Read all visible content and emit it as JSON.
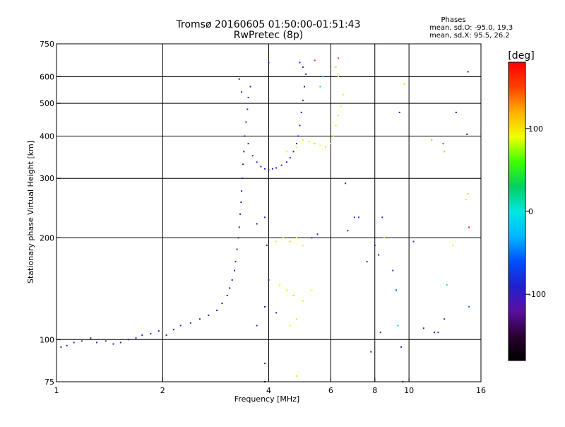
{
  "colors": {
    "background": "#ffffff",
    "axis": "#000000",
    "grid": "#000000",
    "colorbar_stops": [
      "#000000",
      "#2b0033",
      "#5a0fa0",
      "#2020d0",
      "#0050ff",
      "#00b8ff",
      "#00e8e0",
      "#00d060",
      "#40ff00",
      "#f0ff00",
      "#ffb000",
      "#ff4000",
      "#ff0000"
    ]
  },
  "chart_data": {
    "type": "scatter",
    "title": "Tromsø 20160605 01:50:00-01:51:43",
    "subtitle": "RwPretec (8p)",
    "xlabel": "Frequency [MHz]",
    "ylabel": "Stationary phase Virtual Height [km]",
    "x_scale": "log",
    "y_scale": "log",
    "xlim": [
      1,
      16
    ],
    "ylim": [
      75,
      750
    ],
    "x_ticks": [
      1,
      2,
      4,
      6,
      8,
      10,
      16
    ],
    "y_ticks": [
      75,
      100,
      200,
      300,
      400,
      500,
      600,
      750
    ],
    "x_gridlines": [
      2,
      4,
      6,
      8,
      10
    ],
    "y_gridlines": [
      100,
      200,
      300,
      400,
      500,
      600
    ],
    "grid": true,
    "legend_block": {
      "title": "Phases",
      "line1": "mean, sd,O: -95.0, 19.3",
      "line2": "mean, sd,X:  95.5, 26.2"
    },
    "colorbar": {
      "label": "[deg]",
      "range": [
        -180,
        180
      ],
      "ticks": [
        100,
        0,
        -100
      ]
    },
    "series": [
      {
        "values": [
          [
            1.03,
            95,
            -100
          ],
          [
            1.07,
            96,
            -95
          ],
          [
            1.12,
            98,
            -105
          ],
          [
            1.18,
            99,
            -90
          ],
          [
            1.25,
            101,
            -110
          ],
          [
            1.3,
            98,
            -95
          ],
          [
            1.38,
            99,
            -100
          ],
          [
            1.45,
            97,
            -85
          ],
          [
            1.52,
            98,
            -100
          ],
          [
            1.6,
            100,
            -110
          ],
          [
            1.68,
            101,
            -95
          ],
          [
            1.75,
            103,
            -100
          ],
          [
            1.85,
            104,
            -90
          ],
          [
            1.95,
            106,
            -100
          ],
          [
            2.05,
            103,
            -95
          ],
          [
            2.15,
            107,
            -100
          ],
          [
            2.25,
            110,
            -85
          ],
          [
            2.4,
            112,
            -105
          ],
          [
            2.55,
            115,
            -95
          ],
          [
            2.7,
            118,
            -100
          ],
          [
            2.85,
            122,
            -110
          ],
          [
            2.95,
            128,
            -90
          ],
          [
            3.05,
            135,
            -100
          ],
          [
            3.1,
            142,
            -95
          ],
          [
            3.15,
            150,
            -105
          ],
          [
            3.2,
            160,
            -100
          ],
          [
            3.22,
            170,
            -90
          ],
          [
            3.25,
            185,
            -110
          ],
          [
            3.28,
            200,
            -100
          ],
          [
            3.3,
            215,
            -95
          ],
          [
            3.32,
            235,
            -105
          ],
          [
            3.34,
            255,
            -100
          ],
          [
            3.35,
            275,
            -90
          ],
          [
            3.37,
            300,
            -100
          ],
          [
            3.38,
            330,
            -110
          ],
          [
            3.4,
            360,
            -95
          ],
          [
            3.42,
            400,
            -100
          ],
          [
            3.45,
            440,
            -105
          ],
          [
            3.48,
            480,
            -90
          ],
          [
            3.5,
            520,
            -100
          ],
          [
            3.55,
            560,
            -110
          ],
          [
            3.35,
            540,
            -100
          ],
          [
            3.3,
            590,
            -95
          ],
          [
            3.5,
            380,
            -90
          ],
          [
            3.6,
            350,
            -100
          ],
          [
            3.7,
            335,
            -105
          ],
          [
            3.8,
            325,
            -95
          ],
          [
            3.9,
            320,
            -100
          ],
          [
            4.0,
            318,
            -90
          ],
          [
            4.1,
            320,
            -100
          ],
          [
            4.2,
            322,
            -110
          ],
          [
            4.35,
            328,
            -95
          ],
          [
            4.5,
            335,
            -100
          ],
          [
            4.6,
            345,
            -90
          ],
          [
            4.7,
            360,
            -100
          ],
          [
            4.8,
            380,
            -105
          ],
          [
            4.85,
            400,
            -95
          ],
          [
            4.9,
            430,
            -100
          ],
          [
            4.95,
            470,
            -90
          ],
          [
            5.0,
            510,
            -100
          ],
          [
            5.05,
            560,
            -110
          ],
          [
            5.1,
            610,
            -95
          ],
          [
            5.0,
            640,
            -100
          ],
          [
            4.9,
            660,
            -90
          ],
          [
            4.0,
            660,
            -100
          ],
          [
            5.0,
            390,
            95
          ],
          [
            5.2,
            385,
            100
          ],
          [
            5.4,
            380,
            110
          ],
          [
            5.6,
            375,
            90
          ],
          [
            5.8,
            372,
            100
          ],
          [
            6.0,
            380,
            95
          ],
          [
            6.1,
            400,
            110
          ],
          [
            6.2,
            430,
            100
          ],
          [
            6.3,
            460,
            105
          ],
          [
            6.4,
            490,
            95
          ],
          [
            6.5,
            530,
            100
          ],
          [
            6.3,
            600,
            80
          ],
          [
            6.2,
            640,
            110
          ],
          [
            6.3,
            680,
            150
          ],
          [
            5.7,
            600,
            -20
          ],
          [
            5.6,
            560,
            10
          ],
          [
            4.8,
            370,
            90
          ],
          [
            4.5,
            360,
            100
          ],
          [
            3.95,
            190,
            -100
          ],
          [
            4.2,
            195,
            95
          ],
          [
            4.4,
            200,
            100
          ],
          [
            4.6,
            195,
            110
          ],
          [
            4.8,
            200,
            95
          ],
          [
            5.0,
            190,
            90
          ],
          [
            5.3,
            200,
            -100
          ],
          [
            5.5,
            205,
            -95
          ],
          [
            4.0,
            150,
            -100
          ],
          [
            4.3,
            145,
            95
          ],
          [
            4.5,
            140,
            100
          ],
          [
            4.7,
            135,
            110
          ],
          [
            5.0,
            130,
            100
          ],
          [
            5.3,
            140,
            95
          ],
          [
            4.6,
            110,
            95
          ],
          [
            4.8,
            115,
            100
          ],
          [
            4.2,
            120,
            -100
          ],
          [
            3.9,
            125,
            -95
          ],
          [
            3.7,
            110,
            -100
          ],
          [
            4.8,
            78,
            100
          ],
          [
            3.9,
            85,
            -100
          ],
          [
            3.9,
            75,
            -90
          ],
          [
            3.7,
            220,
            -100
          ],
          [
            3.9,
            230,
            -110
          ],
          [
            7.6,
            170,
            -100
          ],
          [
            8.2,
            178,
            -95
          ],
          [
            8.4,
            230,
            -100
          ],
          [
            8.5,
            200,
            100
          ],
          [
            9.5,
            95,
            -100
          ],
          [
            9.6,
            75,
            -90
          ],
          [
            9.4,
            470,
            -110
          ],
          [
            9.7,
            570,
            100
          ],
          [
            10.3,
            195,
            -100
          ],
          [
            11,
            108,
            -95
          ],
          [
            12.1,
            105,
            -110
          ],
          [
            12.6,
            115,
            -100
          ],
          [
            12.8,
            145,
            10
          ],
          [
            13.3,
            190,
            100
          ],
          [
            12.5,
            380,
            150
          ],
          [
            12.6,
            360,
            120
          ],
          [
            13.6,
            470,
            -100
          ],
          [
            14.7,
            620,
            -90
          ],
          [
            14.6,
            405,
            -100
          ],
          [
            14.7,
            270,
            110
          ],
          [
            14.8,
            215,
            170
          ],
          [
            14.8,
            125,
            -50
          ],
          [
            9.2,
            140,
            -60
          ],
          [
            9.3,
            110,
            -20
          ],
          [
            8.3,
            105,
            -100
          ],
          [
            9.0,
            160,
            -100
          ],
          [
            8.0,
            190,
            -100
          ],
          [
            7.0,
            230,
            -90
          ],
          [
            7.2,
            230,
            -95
          ],
          [
            6.6,
            290,
            -100
          ],
          [
            6.7,
            210,
            -100
          ],
          [
            7.8,
            92,
            -100
          ],
          [
            11.8,
            105,
            -140
          ],
          [
            14.5,
            260,
            100
          ],
          [
            11.6,
            390,
            120
          ],
          [
            5.4,
            670,
            160
          ]
        ]
      }
    ]
  }
}
